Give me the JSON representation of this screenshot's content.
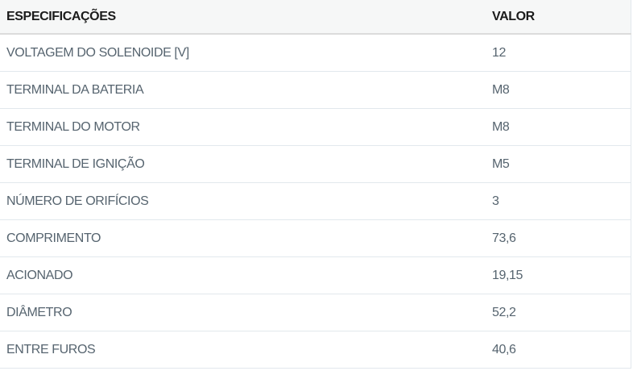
{
  "table": {
    "name": "product-specifications",
    "headers": [
      {
        "label": "ESPECIFICAÇÕES"
      },
      {
        "label": "VALOR"
      }
    ],
    "rows": [
      {
        "spec": "VOLTAGEM DO SOLENOIDE [V]",
        "value": "12"
      },
      {
        "spec": "TERMINAL DA BATERIA",
        "value": "M8"
      },
      {
        "spec": "TERMINAL DO MOTOR",
        "value": "M8"
      },
      {
        "spec": "TERMINAL DE IGNIÇÃO",
        "value": "M5"
      },
      {
        "spec": "NÚMERO DE ORIFÍCIOS",
        "value": "3"
      },
      {
        "spec": "COMPRIMENTO",
        "value": "73,6"
      },
      {
        "spec": "ACIONADO",
        "value": "19,15"
      },
      {
        "spec": "DIÂMETRO",
        "value": "52,2"
      },
      {
        "spec": "ENTRE FUROS",
        "value": "40,6"
      }
    ],
    "colors": {
      "header_text": "#1b1b1b",
      "header_background": "#f6f7f7",
      "header_border": "#dcdcdc",
      "row_text": "#56646f",
      "row_separator": "#e2e8ed",
      "row_background": "#ffffff"
    }
  }
}
